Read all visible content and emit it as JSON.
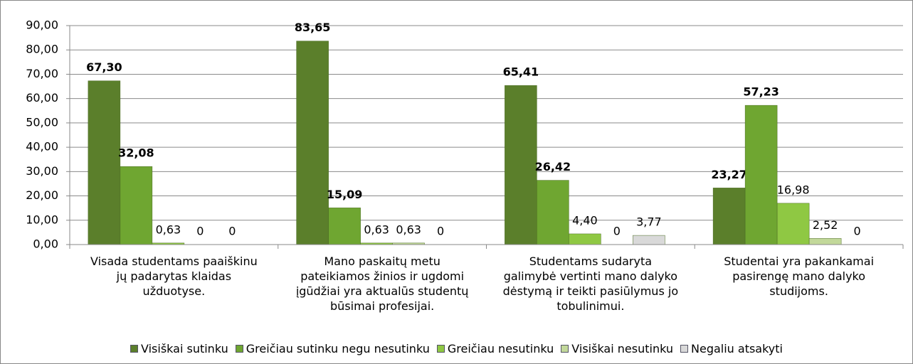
{
  "chart_data": {
    "type": "bar",
    "categories": [
      "Visada studentams paaiškinu jų padarytas klaidas užduotyse.",
      "Mano paskaitų metu pateikiamos žinios ir ugdomi įgūdžiai yra aktualūs studentų būsimai profesijai.",
      "Studentams sudaryta galimybė vertinti mano dalyko dėstymą ir teikti pasiūlymus jo tobulinimui.",
      "Studentai yra pakankamai pasirengę mano dalyko studijoms."
    ],
    "series": [
      {
        "name": "Visiškai sutinku",
        "color": "#5b7f2b",
        "values": [
          67.3,
          83.65,
          65.41,
          23.27
        ],
        "value_labels": [
          "67,30",
          "83,65",
          "65,41",
          "23,27"
        ]
      },
      {
        "name": "Greičiau sutinku negu nesutinku",
        "color": "#6fa631",
        "values": [
          32.08,
          15.09,
          26.42,
          57.23
        ],
        "value_labels": [
          "32,08",
          "15,09",
          "26,42",
          "57,23"
        ]
      },
      {
        "name": "Greičiau nesutinku",
        "color": "#8fc843",
        "values": [
          0.63,
          0.63,
          4.4,
          16.98
        ],
        "value_labels": [
          "0,63",
          "0,63",
          "4,40",
          "16,98"
        ]
      },
      {
        "name": "Visiškai nesutinku",
        "color": "#c2d89a",
        "values": [
          0,
          0.63,
          0,
          2.52
        ],
        "value_labels": [
          "0",
          "0,63",
          "0",
          "2,52"
        ]
      },
      {
        "name": "Negaliu atsakyti",
        "color": "#d9d9d9",
        "values": [
          0,
          0,
          3.77,
          0
        ],
        "value_labels": [
          "0",
          "0",
          "3,77",
          "0"
        ]
      }
    ],
    "ylim": [
      0,
      90
    ],
    "yticks": [
      {
        "value": 0,
        "label": "0,00"
      },
      {
        "value": 10,
        "label": "10,00"
      },
      {
        "value": 20,
        "label": "20,00"
      },
      {
        "value": 30,
        "label": "30,00"
      },
      {
        "value": 40,
        "label": "40,00"
      },
      {
        "value": 50,
        "label": "50,00"
      },
      {
        "value": 60,
        "label": "60,00"
      },
      {
        "value": 70,
        "label": "70,00"
      },
      {
        "value": 80,
        "label": "80,00"
      },
      {
        "value": 90,
        "label": "90,00"
      }
    ],
    "grid": true,
    "legend": "bottom"
  }
}
